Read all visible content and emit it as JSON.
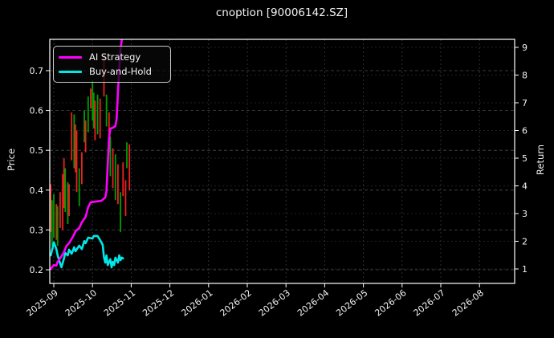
{
  "title": "cnoption [90006142.SZ]",
  "legend": {
    "items": [
      {
        "label": "AI Strategy",
        "color": "#ff00ff"
      },
      {
        "label": "Buy-and-Hold",
        "color": "#00e8e8"
      }
    ]
  },
  "axes": {
    "left_label": "Price",
    "right_label": "Return",
    "price_tick_labels": [
      "0.2",
      "0.3",
      "0.4",
      "0.5",
      "0.6",
      "0.7"
    ],
    "return_tick_labels": [
      "1",
      "2",
      "3",
      "4",
      "5",
      "6",
      "7",
      "8",
      "9"
    ],
    "x_tick_labels": [
      "2025-09",
      "2025-10",
      "2025-11",
      "2025-12",
      "2026-01",
      "2026-02",
      "2026-03",
      "2026-04",
      "2026-05",
      "2026-06",
      "2026-07",
      "2026-08"
    ]
  },
  "chart_data": {
    "type": "candlestick+line",
    "title": "cnoption [90006142.SZ]",
    "grid": true,
    "legend_position": "upper left",
    "x_axis": {
      "tick_labels": [
        "2025-09",
        "2025-10",
        "2025-11",
        "2025-12",
        "2026-01",
        "2026-02",
        "2026-03",
        "2026-04",
        "2026-05",
        "2026-06",
        "2026-07",
        "2026-08"
      ]
    },
    "price_axis": {
      "label": "Price",
      "ticks": [
        0.2,
        0.3,
        0.4,
        0.5,
        0.6,
        0.7
      ],
      "range": [
        0.166,
        0.779
      ]
    },
    "return_axis": {
      "label": "Return",
      "ticks": [
        1,
        2,
        3,
        4,
        5,
        6,
        7,
        8,
        9
      ],
      "range": [
        0.48,
        9.3
      ]
    },
    "up_color": "#00a000",
    "down_color": "#ee2020",
    "candles": [
      {
        "date": "2025-08-29",
        "high": 0.415,
        "low": 0.295,
        "dir": "down"
      },
      {
        "date": "2025-08-30",
        "high": 0.375,
        "low": 0.26,
        "dir": "up"
      },
      {
        "date": "2025-09-01",
        "high": 0.39,
        "low": 0.28,
        "dir": "up"
      },
      {
        "date": "2025-09-03",
        "high": 0.365,
        "low": 0.275,
        "dir": "down"
      },
      {
        "date": "2025-09-04",
        "high": 0.36,
        "low": 0.26,
        "dir": "up"
      },
      {
        "date": "2025-09-06",
        "high": 0.395,
        "low": 0.305,
        "dir": "down"
      },
      {
        "date": "2025-09-08",
        "high": 0.44,
        "low": 0.3,
        "dir": "down"
      },
      {
        "date": "2025-09-09",
        "high": 0.48,
        "low": 0.355,
        "dir": "down"
      },
      {
        "date": "2025-09-10",
        "high": 0.455,
        "low": 0.345,
        "dir": "up"
      },
      {
        "date": "2025-09-12",
        "high": 0.42,
        "low": 0.315,
        "dir": "up"
      },
      {
        "date": "2025-09-13",
        "high": 0.415,
        "low": 0.335,
        "dir": "down"
      },
      {
        "date": "2025-09-15",
        "high": 0.595,
        "low": 0.475,
        "dir": "down"
      },
      {
        "date": "2025-09-17",
        "high": 0.59,
        "low": 0.455,
        "dir": "up"
      },
      {
        "date": "2025-09-18",
        "high": 0.565,
        "low": 0.445,
        "dir": "down"
      },
      {
        "date": "2025-09-19",
        "high": 0.55,
        "low": 0.395,
        "dir": "down"
      },
      {
        "date": "2025-09-21",
        "high": 0.455,
        "low": 0.36,
        "dir": "up"
      },
      {
        "date": "2025-09-23",
        "high": 0.495,
        "low": 0.415,
        "dir": "down"
      },
      {
        "date": "2025-09-25",
        "high": 0.6,
        "low": 0.52,
        "dir": "up"
      },
      {
        "date": "2025-09-26",
        "high": 0.575,
        "low": 0.495,
        "dir": "down"
      },
      {
        "date": "2025-09-28",
        "high": 0.635,
        "low": 0.545,
        "dir": "up"
      },
      {
        "date": "2025-09-30",
        "high": 0.655,
        "low": 0.605,
        "dir": "down"
      },
      {
        "date": "2025-10-01",
        "high": 0.675,
        "low": 0.575,
        "dir": "up"
      },
      {
        "date": "2025-10-02",
        "high": 0.645,
        "low": 0.555,
        "dir": "up"
      },
      {
        "date": "2025-10-03",
        "high": 0.625,
        "low": 0.525,
        "dir": "down"
      },
      {
        "date": "2025-10-05",
        "high": 0.64,
        "low": 0.54,
        "dir": "up"
      },
      {
        "date": "2025-10-07",
        "high": 0.63,
        "low": 0.53,
        "dir": "down"
      },
      {
        "date": "2025-10-10",
        "high": 0.74,
        "low": 0.635,
        "dir": "down"
      },
      {
        "date": "2025-10-12",
        "high": 0.64,
        "low": 0.56,
        "dir": "up"
      },
      {
        "date": "2025-10-14",
        "high": 0.595,
        "low": 0.495,
        "dir": "down"
      },
      {
        "date": "2025-10-15",
        "high": 0.535,
        "low": 0.435,
        "dir": "up"
      },
      {
        "date": "2025-10-17",
        "high": 0.505,
        "low": 0.405,
        "dir": "down"
      },
      {
        "date": "2025-10-19",
        "high": 0.49,
        "low": 0.375,
        "dir": "up"
      },
      {
        "date": "2025-10-21",
        "high": 0.465,
        "low": 0.365,
        "dir": "down"
      },
      {
        "date": "2025-10-23",
        "high": 0.395,
        "low": 0.295,
        "dir": "up"
      },
      {
        "date": "2025-10-25",
        "high": 0.47,
        "low": 0.385,
        "dir": "down"
      },
      {
        "date": "2025-10-27",
        "high": 0.425,
        "low": 0.335,
        "dir": "down"
      },
      {
        "date": "2025-10-28",
        "high": 0.52,
        "low": 0.455,
        "dir": "up"
      },
      {
        "date": "2025-10-30",
        "high": 0.515,
        "low": 0.4,
        "dir": "down"
      }
    ],
    "series": [
      {
        "name": "AI Strategy",
        "axis": "return",
        "color": "#ff00ff",
        "points": [
          [
            "2025-08-29",
            1.0
          ],
          [
            "2025-09-01",
            1.14
          ],
          [
            "2025-09-03",
            1.12
          ],
          [
            "2025-09-04",
            1.26
          ],
          [
            "2025-09-06",
            1.38
          ],
          [
            "2025-09-09",
            1.61
          ],
          [
            "2025-09-11",
            1.84
          ],
          [
            "2025-09-13",
            1.93
          ],
          [
            "2025-09-16",
            2.16
          ],
          [
            "2025-09-18",
            2.36
          ],
          [
            "2025-09-21",
            2.48
          ],
          [
            "2025-09-23",
            2.68
          ],
          [
            "2025-09-26",
            2.88
          ],
          [
            "2025-09-28",
            3.23
          ],
          [
            "2025-09-30",
            3.41
          ],
          [
            "2025-10-03",
            3.43
          ],
          [
            "2025-10-08",
            3.46
          ],
          [
            "2025-10-11",
            3.58
          ],
          [
            "2025-10-12",
            3.81
          ],
          [
            "2025-10-13",
            4.77
          ],
          [
            "2025-10-14",
            5.72
          ],
          [
            "2025-10-15",
            6.07
          ],
          [
            "2025-10-17",
            6.1
          ],
          [
            "2025-10-19",
            6.16
          ],
          [
            "2025-10-20",
            6.42
          ],
          [
            "2025-10-21",
            7.38
          ],
          [
            "2025-10-22",
            8.25
          ],
          [
            "2025-10-23",
            8.91
          ],
          [
            "2025-10-24",
            9.28
          ]
        ]
      },
      {
        "name": "Buy-and-Hold",
        "axis": "return",
        "color": "#00e8e8",
        "points": [
          [
            "2025-08-29",
            1.49
          ],
          [
            "2025-08-31",
            1.87
          ],
          [
            "2025-09-01",
            1.96
          ],
          [
            "2025-09-03",
            1.72
          ],
          [
            "2025-09-04",
            1.49
          ],
          [
            "2025-09-06",
            1.2
          ],
          [
            "2025-09-07",
            1.06
          ],
          [
            "2025-09-09",
            1.38
          ],
          [
            "2025-09-10",
            1.58
          ],
          [
            "2025-09-12",
            1.49
          ],
          [
            "2025-09-13",
            1.7
          ],
          [
            "2025-09-15",
            1.55
          ],
          [
            "2025-09-17",
            1.78
          ],
          [
            "2025-09-18",
            1.64
          ],
          [
            "2025-09-21",
            1.84
          ],
          [
            "2025-09-23",
            1.72
          ],
          [
            "2025-09-25",
            2.01
          ],
          [
            "2025-09-26",
            1.93
          ],
          [
            "2025-09-28",
            2.13
          ],
          [
            "2025-10-01",
            2.1
          ],
          [
            "2025-10-02",
            2.19
          ],
          [
            "2025-10-05",
            2.19
          ],
          [
            "2025-10-07",
            2.04
          ],
          [
            "2025-10-09",
            1.87
          ],
          [
            "2025-10-10",
            1.43
          ],
          [
            "2025-10-11",
            1.23
          ],
          [
            "2025-10-12",
            1.49
          ],
          [
            "2025-10-13",
            1.14
          ],
          [
            "2025-10-15",
            1.35
          ],
          [
            "2025-10-16",
            1.06
          ],
          [
            "2025-10-17",
            1.26
          ],
          [
            "2025-10-18",
            1.14
          ],
          [
            "2025-10-19",
            1.41
          ],
          [
            "2025-10-21",
            1.23
          ],
          [
            "2025-10-22",
            1.49
          ],
          [
            "2025-10-23",
            1.32
          ],
          [
            "2025-10-24",
            1.41
          ],
          [
            "2025-10-25",
            1.38
          ]
        ]
      }
    ]
  }
}
